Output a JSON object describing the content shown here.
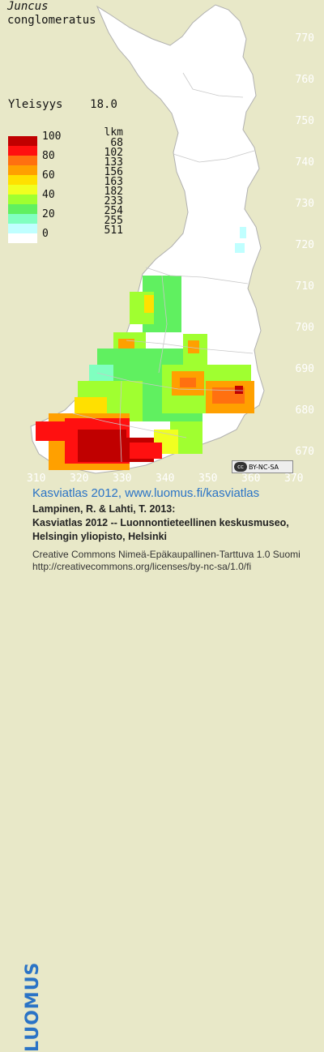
{
  "species": {
    "line1": "Juncus",
    "line2": "conglomeratus"
  },
  "frequency": {
    "label": "Yleisyys",
    "value": "18.0"
  },
  "legend": {
    "count_header": "lkm",
    "scale_labels": [
      "100",
      "80",
      "60",
      "40",
      "20",
      "0"
    ],
    "counts": [
      "68",
      "102",
      "133",
      "156",
      "163",
      "182",
      "233",
      "254",
      "255",
      "511"
    ],
    "colors": [
      "#c00000",
      "#ff1010",
      "#ff7010",
      "#ffa000",
      "#ffe000",
      "#f0ff20",
      "#a0ff30",
      "#60f060",
      "#80ffc0",
      "#c0ffff",
      "#ffffff"
    ]
  },
  "axes": {
    "y_ticks": [
      "770",
      "760",
      "750",
      "740",
      "730",
      "720",
      "710",
      "700",
      "690",
      "680",
      "670"
    ],
    "x_ticks": [
      "310",
      "320",
      "330",
      "340",
      "350",
      "360",
      "370"
    ]
  },
  "license_badge": "BY-NC-SA",
  "brand": "LUOMUS",
  "credits": {
    "title": "Kasviatlas 2012, www.luomus.fi/kasviatlas",
    "line1": "Lampinen, R. & Lahti, T. 2013:",
    "line2": "Kasviatlas 2012 -- Luonnontieteellinen keskusmuseo,",
    "line3": "Helsingin yliopisto, Helsinki",
    "license1": "Creative Commons Nimeä-Epäkaupallinen-Tarttuva 1.0 Suomi",
    "license2": "http://creativecommons.org/licenses/by-nc-sa/1.0/fi"
  }
}
